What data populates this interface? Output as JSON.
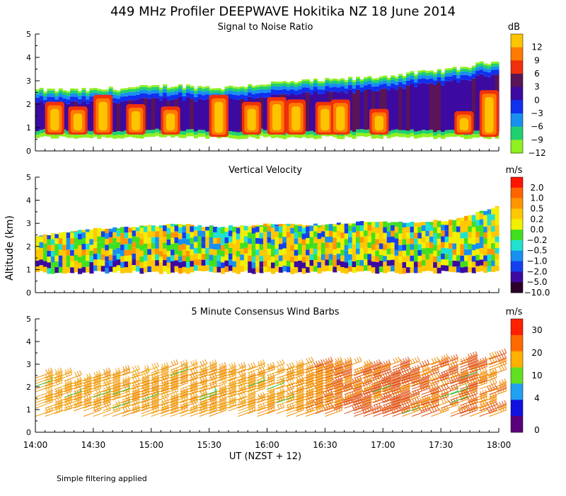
{
  "title": "449 MHz Profiler DEEPWAVE Hokitika NZ 18 June 2014",
  "y_axis_label": "Altitude (km)",
  "x_axis_label": "UT  (NZST + 12)",
  "footnote": "Simple filtering applied",
  "x_ticks": [
    "14:00",
    "14:30",
    "15:00",
    "15:30",
    "16:00",
    "16:30",
    "17:00",
    "17:30",
    "18:00"
  ],
  "y_ticks": [
    "0",
    "1",
    "2",
    "3",
    "4",
    "5"
  ],
  "chart_data": [
    {
      "type": "heatmap",
      "title": "Signal to Noise Ratio",
      "units": "dB",
      "xlabel": "UT  (NZST + 12)",
      "ylabel": "Altitude (km)",
      "xlim": [
        "14:00",
        "18:00"
      ],
      "ylim": [
        0,
        5
      ],
      "colorbar": {
        "levels": [
          "12",
          "9",
          "6",
          "3",
          "0",
          "−3",
          "−6",
          "−9",
          "−12"
        ],
        "colors": [
          "#ffc400",
          "#ff7a00",
          "#f0300a",
          "#5a1458",
          "#3c0aa0",
          "#1030f0",
          "#1890f0",
          "#20d070",
          "#90f020"
        ]
      },
      "layer_bottom_km": 0.5,
      "layer_top_km": [
        2.6,
        2.6,
        2.7,
        2.8,
        2.7,
        2.9,
        3.0,
        3.1,
        3.3,
        3.5,
        3.9
      ],
      "layer_top_times": [
        "14:00",
        "14:24",
        "14:48",
        "15:12",
        "15:36",
        "16:00",
        "16:24",
        "16:48",
        "17:12",
        "17:36",
        "18:00"
      ],
      "high_snr_bursts": [
        {
          "time": "14:10",
          "bottom_km": 0.7,
          "top_km": 2.1
        },
        {
          "time": "14:22",
          "bottom_km": 0.7,
          "top_km": 1.9
        },
        {
          "time": "14:35",
          "bottom_km": 0.7,
          "top_km": 2.4
        },
        {
          "time": "14:52",
          "bottom_km": 0.7,
          "top_km": 2.0
        },
        {
          "time": "15:10",
          "bottom_km": 0.7,
          "top_km": 1.9
        },
        {
          "time": "15:35",
          "bottom_km": 0.6,
          "top_km": 2.4
        },
        {
          "time": "15:52",
          "bottom_km": 0.7,
          "top_km": 2.1
        },
        {
          "time": "16:05",
          "bottom_km": 0.7,
          "top_km": 2.3
        },
        {
          "time": "16:15",
          "bottom_km": 0.7,
          "top_km": 2.2
        },
        {
          "time": "16:30",
          "bottom_km": 0.7,
          "top_km": 2.1
        },
        {
          "time": "16:38",
          "bottom_km": 0.7,
          "top_km": 2.2
        },
        {
          "time": "16:58",
          "bottom_km": 0.7,
          "top_km": 1.8
        },
        {
          "time": "17:42",
          "bottom_km": 0.7,
          "top_km": 1.7
        },
        {
          "time": "17:55",
          "bottom_km": 0.6,
          "top_km": 2.6
        }
      ]
    },
    {
      "type": "heatmap",
      "title": "Vertical Velocity",
      "units": "m/s",
      "xlabel": "UT  (NZST + 12)",
      "ylabel": "Altitude (km)",
      "xlim": [
        "14:00",
        "18:00"
      ],
      "ylim": [
        0,
        5
      ],
      "colorbar": {
        "levels": [
          "2.0",
          "1.0",
          "0.5",
          "0.2",
          "0.0",
          "−0.2",
          "−0.5",
          "−1.0",
          "−2.0",
          "−5.0",
          "−10.0"
        ],
        "colors": [
          "#ff1400",
          "#ff6400",
          "#ff9600",
          "#ffc800",
          "#f0f000",
          "#40e020",
          "#20e0d0",
          "#1890f0",
          "#1440f0",
          "#3c0aa0",
          "#2a002a"
        ]
      },
      "layer_bottom_km": 0.5,
      "layer_top_km": [
        2.5,
        2.8,
        2.9,
        3.0,
        2.9,
        3.0,
        3.0,
        3.1,
        3.1,
        3.2,
        3.8
      ],
      "layer_top_times": [
        "14:00",
        "14:24",
        "14:48",
        "15:12",
        "15:36",
        "16:00",
        "16:24",
        "16:48",
        "17:12",
        "17:36",
        "18:00"
      ]
    },
    {
      "type": "wind_barbs",
      "title": "5 Minute Consensus Wind Barbs",
      "units": "m/s",
      "xlabel": "UT  (NZST + 12)",
      "ylabel": "Altitude (km)",
      "xlim": [
        "14:00",
        "18:00"
      ],
      "ylim": [
        0,
        5
      ],
      "colorbar": {
        "levels": [
          "30",
          "20",
          "10",
          "4",
          "0"
        ],
        "colors": [
          "#ff2000",
          "#ff6a00",
          "#ffb000",
          "#60e020",
          "#20a0f0",
          "#1010e0",
          "#5a007a"
        ]
      },
      "layer_bottom_km": 0.6,
      "layer_top_km": [
        2.4,
        2.4,
        2.6,
        2.8,
        2.7,
        2.8,
        2.9,
        2.9,
        2.9,
        3.1,
        3.3
      ],
      "layer_top_times": [
        "14:00",
        "14:24",
        "14:48",
        "15:12",
        "15:36",
        "16:00",
        "16:24",
        "16:48",
        "17:12",
        "17:36",
        "18:00"
      ],
      "speed_profile_ms": [
        {
          "time": "14:00",
          "speed": 18
        },
        {
          "time": "15:00",
          "speed": 19
        },
        {
          "time": "16:00",
          "speed": 20
        },
        {
          "time": "16:30",
          "speed": 24
        },
        {
          "time": "17:00",
          "speed": 27
        },
        {
          "time": "17:30",
          "speed": 26
        },
        {
          "time": "18:00",
          "speed": 24
        }
      ]
    }
  ]
}
